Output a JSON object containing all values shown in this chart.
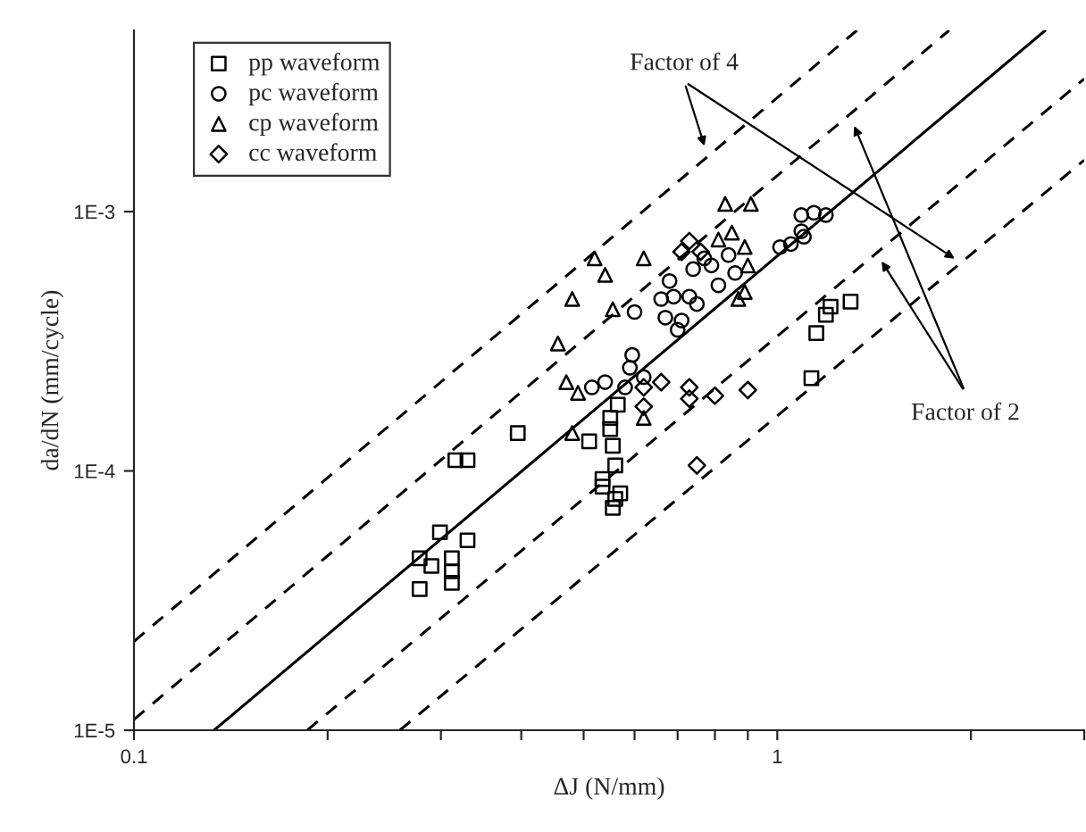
{
  "chart_data": {
    "type": "scatter",
    "xlabel": "ΔJ (N/mm)",
    "ylabel": "da/dN (mm/cycle)",
    "log": "xy",
    "legend": "top left",
    "grid": false,
    "xlim": [
      0.1,
      3
    ],
    "ylim": [
      1e-05,
      0.005
    ],
    "xticks": [
      0.1,
      {
        "value": 0.2,
        "label": null
      },
      {
        "value": 0.3,
        "label": null
      },
      {
        "value": 0.4,
        "label": null
      },
      {
        "value": 0.5,
        "label": null
      },
      {
        "value": 0.6,
        "label": null
      },
      {
        "value": 0.7,
        "label": null
      },
      {
        "value": 0.8,
        "label": null
      },
      {
        "value": 0.9,
        "label": null
      },
      1,
      {
        "value": 2,
        "label": null
      },
      {
        "value": 3,
        "label": null
      }
    ],
    "yticks": [
      {
        "value": 1e-05,
        "label": "1E-5"
      },
      {
        "value": 0.0001,
        "label": "1E-4"
      },
      {
        "value": 0.001,
        "label": "1E-3"
      }
    ],
    "series": [
      {
        "name": "pp waveform",
        "marker": "square",
        "color": "#000000",
        "x": [
          0.278,
          0.278,
          0.299,
          0.29,
          0.312,
          0.312,
          0.312,
          0.33,
          0.316,
          0.33,
          0.395,
          0.51,
          0.535,
          0.535,
          0.55,
          0.55,
          0.555,
          0.56,
          0.565,
          0.56,
          0.555,
          0.57,
          1.13,
          1.15,
          1.19,
          1.21,
          1.3
        ],
        "values": [
          4.6e-05,
          3.5e-05,
          5.8e-05,
          4.3e-05,
          4.6e-05,
          4.1e-05,
          3.7e-05,
          5.4e-05,
          0.00011,
          0.00011,
          0.00014,
          0.00013,
          9.3e-05,
          8.7e-05,
          0.00016,
          0.000145,
          0.000125,
          0.000105,
          0.00018,
          7.8e-05,
          7.2e-05,
          8.2e-05,
          0.000228,
          0.00034,
          0.0004,
          0.00043,
          0.00045
        ]
      },
      {
        "name": "pc waveform",
        "marker": "circle",
        "color": "#000000",
        "x": [
          0.515,
          0.54,
          0.58,
          0.59,
          0.595,
          0.62,
          0.6,
          0.66,
          0.68,
          0.69,
          0.67,
          0.7,
          0.71,
          0.73,
          0.75,
          0.74,
          0.77,
          0.81,
          0.79,
          0.84,
          0.86,
          1.01,
          1.05,
          1.09,
          1.1,
          1.09,
          1.14,
          1.19
        ],
        "values": [
          0.00021,
          0.00022,
          0.00021,
          0.00025,
          0.00028,
          0.00023,
          0.00041,
          0.00046,
          0.00054,
          0.00047,
          0.00039,
          0.00035,
          0.00038,
          0.00047,
          0.00044,
          0.0006,
          0.00066,
          0.00052,
          0.00062,
          0.00068,
          0.00058,
          0.00073,
          0.00075,
          0.00084,
          0.0008,
          0.00097,
          0.00099,
          0.00097
        ]
      },
      {
        "name": "cp waveform",
        "marker": "triangle",
        "color": "#000000",
        "x": [
          0.456,
          0.47,
          0.49,
          0.48,
          0.52,
          0.54,
          0.555,
          0.62,
          0.48,
          0.62,
          0.83,
          0.91,
          0.85,
          0.89,
          0.9,
          0.87,
          0.89,
          0.81
        ],
        "values": [
          0.00031,
          0.00022,
          0.0002,
          0.00046,
          0.00066,
          0.00057,
          0.00042,
          0.00066,
          0.00014,
          0.00016,
          0.00107,
          0.00107,
          0.00083,
          0.00073,
          0.00062,
          0.00046,
          0.00049,
          0.00078
        ]
      },
      {
        "name": "cc waveform",
        "marker": "diamond",
        "color": "#000000",
        "x": [
          0.73,
          0.76,
          0.71,
          0.62,
          0.66,
          0.62,
          0.73,
          0.73,
          0.8,
          0.9,
          0.75
        ],
        "values": [
          0.00077,
          0.0007,
          0.0007,
          0.00021,
          0.00022,
          0.000177,
          0.00019,
          0.00021,
          0.000195,
          0.000205,
          0.000105
        ]
      },
      {
        "type": "line",
        "line_style": "solid",
        "color": "#000000",
        "x": [
          0.1332,
          2.61
        ],
        "values": [
          1e-05,
          0.005
        ]
      },
      {
        "type": "line",
        "line_style": "dashed",
        "color": "#000000",
        "x": [
          0.1,
          1.85
        ],
        "values": [
          1.1e-05,
          0.005
        ]
      },
      {
        "type": "line",
        "line_style": "dashed",
        "color": "#000000",
        "x": [
          0.1,
          1.33
        ],
        "values": [
          2.2e-05,
          0.005
        ]
      },
      {
        "type": "line",
        "line_style": "dashed",
        "color": "#000000",
        "x": [
          0.186,
          3
        ],
        "values": [
          1e-05,
          0.00325
        ]
      },
      {
        "type": "line",
        "line_style": "dashed",
        "color": "#000000",
        "x": [
          0.259,
          3
        ],
        "values": [
          1e-05,
          0.00158
        ]
      }
    ],
    "annotations": [
      "Factor of 4",
      "Factor of 2"
    ]
  }
}
